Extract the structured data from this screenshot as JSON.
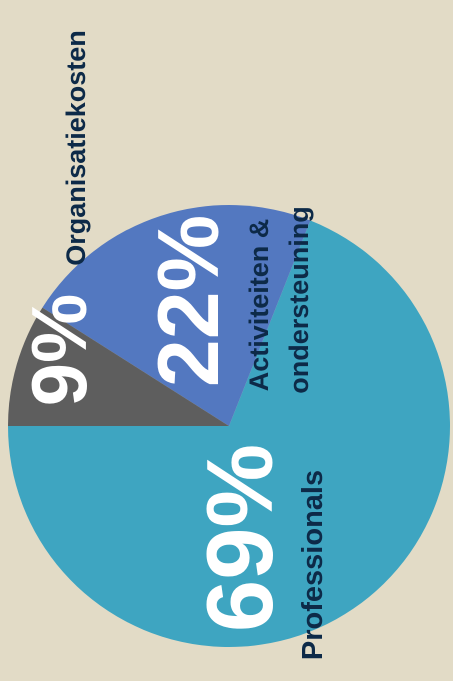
{
  "chart_data": {
    "type": "pie",
    "title": "",
    "slices": [
      {
        "name": "Professionals",
        "value": 69,
        "pct_label": "69%",
        "label_lines": [
          "Professionals"
        ],
        "color": "#3ea5c1"
      },
      {
        "name": "Activiteiten & ondersteuning",
        "value": 22,
        "pct_label": "22%",
        "label_lines": [
          "Activiteiten &",
          "ondersteuning"
        ],
        "color": "#5378c0"
      },
      {
        "name": "Organisatiekosten",
        "value": 9,
        "pct_label": "9%",
        "label_lines": [
          "Organisatiekosten"
        ],
        "color": "#5e5e5e"
      }
    ],
    "legend": "none"
  },
  "colors": {
    "background": "#e2dbc6",
    "percent_text": "#ffffff",
    "label_text": "#0d2a48"
  }
}
